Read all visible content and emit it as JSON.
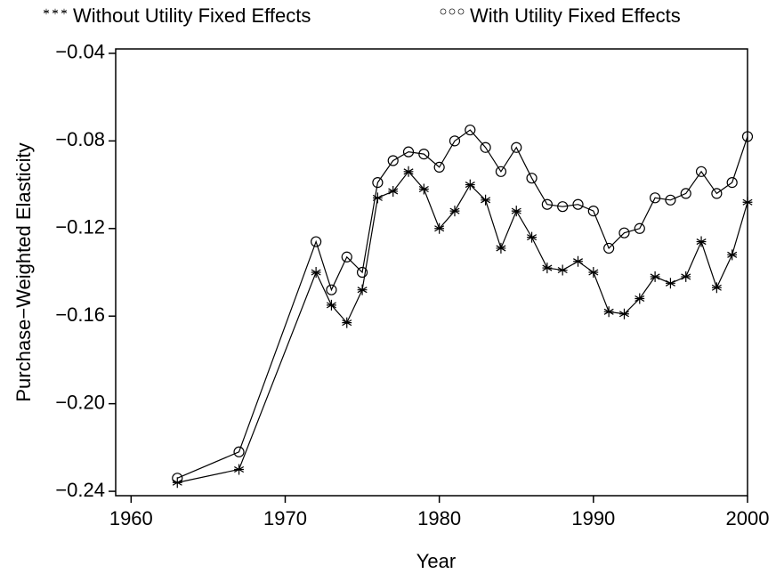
{
  "chart_data": {
    "type": "line",
    "x_label": "Year",
    "y_label": "Purchase−Weighted Elasticity",
    "x": [
      1963,
      1967,
      1972,
      1973,
      1974,
      1975,
      1976,
      1977,
      1978,
      1979,
      1980,
      1981,
      1982,
      1983,
      1984,
      1985,
      1986,
      1987,
      1988,
      1989,
      1990,
      1991,
      1992,
      1993,
      1994,
      1995,
      1996,
      1997,
      1998,
      1999,
      2000
    ],
    "series": [
      {
        "name": "Without Utility Fixed Effects",
        "color": "#000000",
        "marker": "star",
        "values": [
          -0.236,
          -0.23,
          -0.14,
          -0.155,
          -0.163,
          -0.148,
          -0.106,
          -0.103,
          -0.094,
          -0.102,
          -0.12,
          -0.112,
          -0.1,
          -0.107,
          -0.129,
          -0.112,
          -0.124,
          -0.138,
          -0.139,
          -0.135,
          -0.14,
          -0.158,
          -0.159,
          -0.152,
          -0.142,
          -0.145,
          -0.142,
          -0.126,
          -0.147,
          -0.132,
          -0.108
        ]
      },
      {
        "name": "With Utility Fixed Effects",
        "color": "#000000",
        "marker": "circle",
        "values": [
          -0.234,
          -0.222,
          -0.126,
          -0.148,
          -0.133,
          -0.14,
          -0.099,
          -0.089,
          -0.085,
          -0.086,
          -0.092,
          -0.08,
          -0.075,
          -0.083,
          -0.094,
          -0.083,
          -0.097,
          -0.109,
          -0.11,
          -0.109,
          -0.112,
          -0.129,
          -0.122,
          -0.12,
          -0.106,
          -0.107,
          -0.104,
          -0.094,
          -0.104,
          -0.099,
          -0.078
        ]
      }
    ],
    "xlim": [
      1959,
      2000
    ],
    "xticks": [
      1960,
      1970,
      1980,
      1990,
      2000
    ],
    "ylim": [
      -0.242,
      -0.038
    ],
    "yticks": [
      {
        "value": -0.04,
        "label": "−0.04"
      },
      {
        "value": -0.08,
        "label": "−0.08"
      },
      {
        "value": -0.12,
        "label": "−0.12"
      },
      {
        "value": -0.16,
        "label": "−0.16"
      },
      {
        "value": -0.2,
        "label": "−0.20"
      },
      {
        "value": -0.24,
        "label": "−0.24"
      }
    ],
    "legend": "top"
  }
}
